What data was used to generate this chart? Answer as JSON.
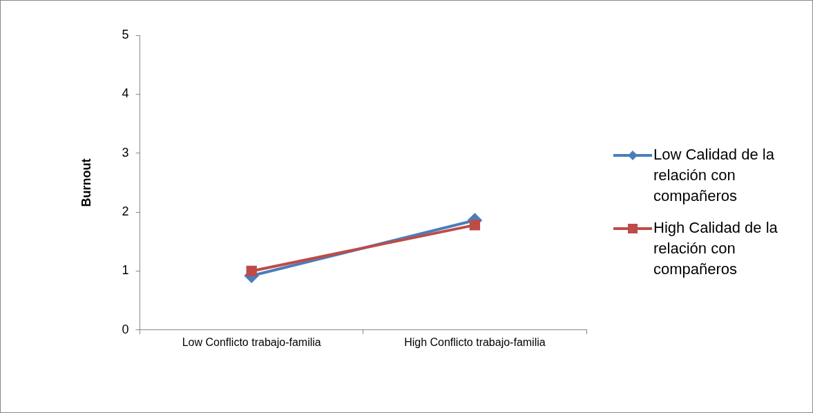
{
  "chart_data": {
    "type": "line",
    "ylabel": "Burnout",
    "categories": [
      "Low Conflicto trabajo-familia",
      "High Conflicto trabajo-familia"
    ],
    "series": [
      {
        "name": "Low Calidad de la relación con compañeros",
        "color": "#4a7ebb",
        "values": [
          0.92,
          1.86
        ],
        "marker": "diamond"
      },
      {
        "name": "High Calidad de la relación con compañeros",
        "color": "#be4b48",
        "values": [
          1.0,
          1.78
        ],
        "marker": "square"
      }
    ],
    "ylim": [
      0,
      5
    ],
    "yticks": [
      0,
      1,
      2,
      3,
      4,
      5
    ],
    "grid": false,
    "legend": "right",
    "line_style": "solid"
  }
}
